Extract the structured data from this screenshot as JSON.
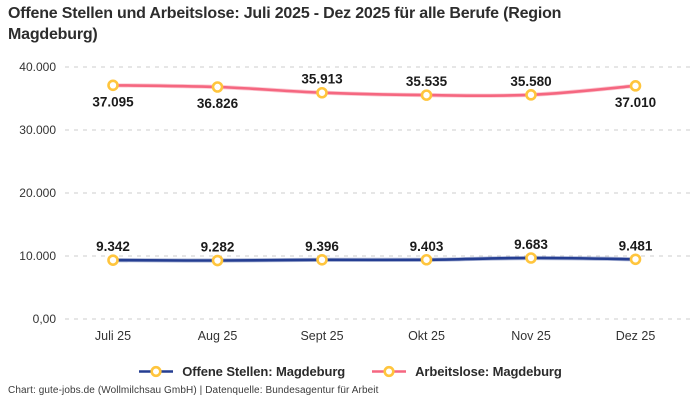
{
  "title": "Offene Stellen und Arbeitslose: Juli 2025 - Dez 2025 für alle Berufe (Region Magdeburg)",
  "footer": "Chart: gute-jobs.de (Wollmilchsau GmbH) | Datenquelle: Bundesagentur für Arbeit",
  "legend": [
    {
      "label": "Offene Stellen: Magdeburg",
      "color": "#253e92"
    },
    {
      "label": "Arbeitslose: Magdeburg",
      "color": "#f56780"
    }
  ],
  "colors": {
    "marker_ring": "#ffc53d",
    "marker_fill": "#ffffff",
    "grid": "#cccccc",
    "tick_text": "#333333",
    "data_label_text": "#1b1b1b",
    "series_open_positions": "#253e92",
    "series_unemployed": "#f56780"
  },
  "chart_data": {
    "type": "line",
    "title": "Offene Stellen und Arbeitslose: Juli 2025 - Dez 2025 für alle Berufe (Region Magdeburg)",
    "categories": [
      "Juli 25",
      "Aug 25",
      "Sept 25",
      "Okt 25",
      "Nov 25",
      "Dez 25"
    ],
    "series": [
      {
        "name": "Offene Stellen: Magdeburg",
        "color": "#253e92",
        "values": [
          9342,
          9282,
          9396,
          9403,
          9683,
          9481
        ],
        "labels": [
          "9.342",
          "9.282",
          "9.396",
          "9.403",
          "9.683",
          "9.481"
        ],
        "label_positions": [
          "above",
          "above",
          "above",
          "above",
          "above",
          "above"
        ]
      },
      {
        "name": "Arbeitslose: Magdeburg",
        "color": "#f56780",
        "values": [
          37095,
          36826,
          35913,
          35535,
          35580,
          37010
        ],
        "labels": [
          "37.095",
          "36.826",
          "35.913",
          "35.535",
          "35.580",
          "37.010"
        ],
        "label_positions": [
          "below",
          "below",
          "above",
          "above",
          "above",
          "below"
        ]
      }
    ],
    "ylim": [
      0,
      40000
    ],
    "yticks": [
      {
        "value": 0,
        "label": "0,00"
      },
      {
        "value": 10000,
        "label": "10.000"
      },
      {
        "value": 20000,
        "label": "20.000"
      },
      {
        "value": 30000,
        "label": "30.000"
      },
      {
        "value": 40000,
        "label": "40.000"
      }
    ],
    "grid": true,
    "grid_style": "dashed",
    "legend_position": "bottom",
    "marker": "circle-yellow-ring"
  }
}
